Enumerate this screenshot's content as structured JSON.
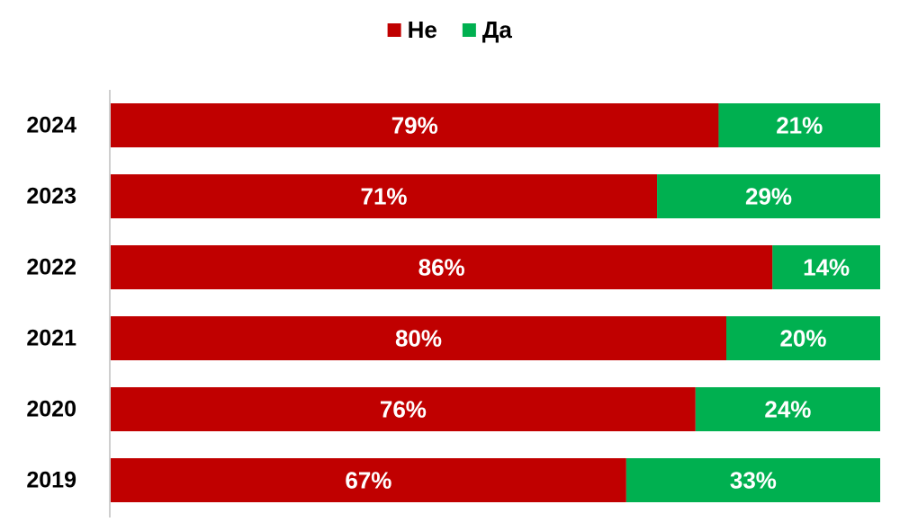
{
  "chart_data": {
    "type": "stacked-bar-horizontal",
    "categories": [
      "2024",
      "2023",
      "2022",
      "2021",
      "2020",
      "2019"
    ],
    "series": [
      {
        "name": "Не",
        "color": "#c00000",
        "values": [
          79,
          71,
          86,
          80,
          76,
          67
        ],
        "value_labels": [
          "79%",
          "71%",
          "86%",
          "80%",
          "76%",
          "67%"
        ]
      },
      {
        "name": "Да",
        "color": "#00b050",
        "values": [
          21,
          29,
          14,
          20,
          24,
          33
        ],
        "value_labels": [
          "21%",
          "29%",
          "14%",
          "20%",
          "24%",
          "33%"
        ]
      }
    ],
    "legend": "top"
  }
}
